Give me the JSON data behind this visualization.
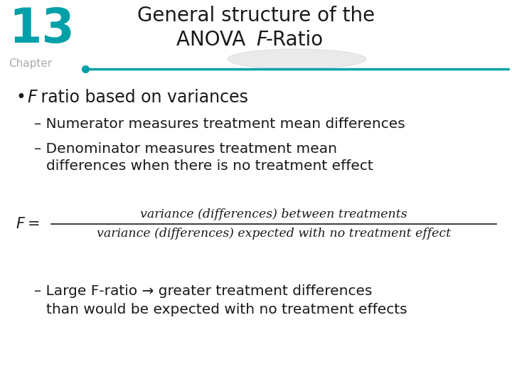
{
  "title_line1": "General structure of the",
  "title_line2_normal": "ANOVA ",
  "title_line2_italic": "F",
  "title_line2_rest": "-Ratio",
  "chapter_num": "13",
  "chapter_label": "Chapter",
  "teal_color": "#00A0A8",
  "chapter_color": "#aaaaaa",
  "bg_color": "#ffffff",
  "text_color": "#1a1a1a",
  "formula_numerator": "variance (differences) between treatments",
  "formula_denominator": "variance (differences) expected with no treatment effect"
}
